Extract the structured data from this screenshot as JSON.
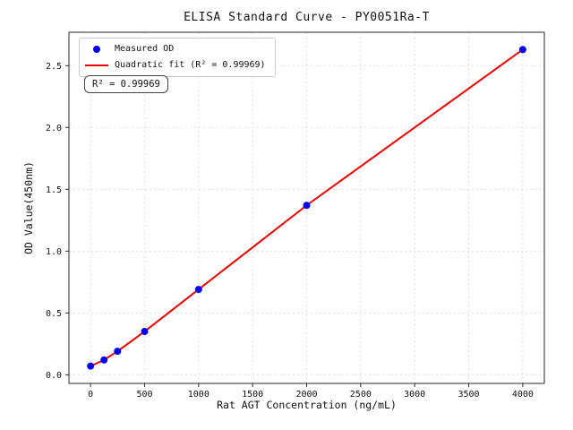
{
  "chart_data": {
    "type": "scatter",
    "title": "ELISA Standard Curve - PY0051Ra-T",
    "xlabel": "Rat AGT Concentration (ng/mL)",
    "ylabel": "OD Value(450nm)",
    "xlim": [
      -200,
      4200
    ],
    "ylim": [
      -0.07,
      2.77
    ],
    "x_tick_values": [
      0,
      500,
      1000,
      1500,
      2000,
      2500,
      3000,
      3500,
      4000
    ],
    "x_tick_labels": [
      "0",
      "500",
      "1000",
      "1500",
      "2000",
      "2500",
      "3000",
      "3500",
      "4000"
    ],
    "y_tick_values": [
      0.0,
      0.5,
      1.0,
      1.5,
      2.0,
      2.5
    ],
    "y_tick_labels": [
      "0.0",
      "0.5",
      "1.0",
      "1.5",
      "2.0",
      "2.5"
    ],
    "grid": true,
    "grid_color": "#d6d6d6",
    "spine_color": "#2a2a2a",
    "series": [
      {
        "name": "Measured OD",
        "type": "scatter",
        "color": "#0000ee",
        "x": [
          0,
          125,
          250,
          500,
          1000,
          2000,
          4000
        ],
        "y": [
          0.07,
          0.12,
          0.19,
          0.35,
          0.69,
          1.37,
          2.63
        ]
      },
      {
        "name": "Quadratic fit (R² = 0.99969)",
        "type": "line",
        "color": "#e60000",
        "x": [
          0,
          125,
          250,
          500,
          1000,
          2000,
          4000
        ],
        "y": [
          0.07,
          0.12,
          0.19,
          0.35,
          0.69,
          1.37,
          2.63
        ]
      }
    ],
    "legend": {
      "position": "upper left"
    },
    "annotation": {
      "text": "R² = 0.99969"
    },
    "r_squared": "0.99969"
  }
}
